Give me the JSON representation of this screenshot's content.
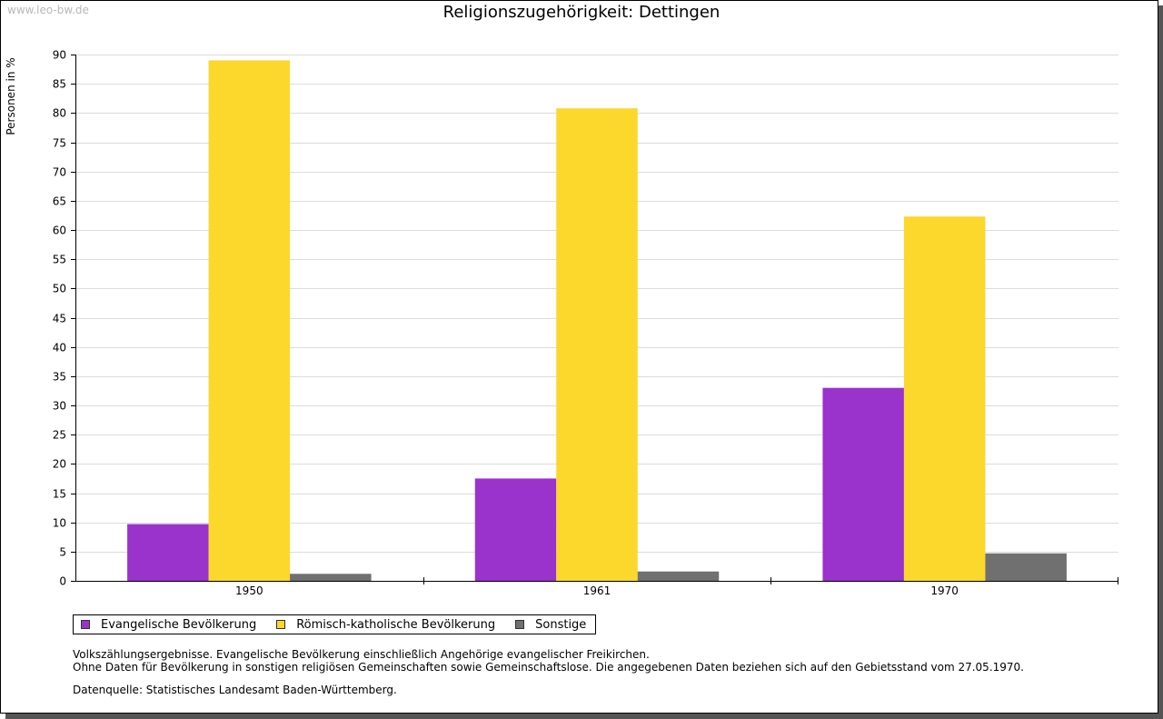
{
  "watermark": "www.leo-bw.de",
  "chart_data": {
    "type": "bar",
    "title": "Religionszugehörigkeit: Dettingen",
    "xlabel": "",
    "ylabel": "Personen in %",
    "ylim": [
      0,
      90
    ],
    "y_tick_step": 5,
    "grid": true,
    "legend_position": "bottom-left",
    "categories": [
      "1950",
      "1961",
      "1970"
    ],
    "series": [
      {
        "name": "Evangelische Bevölkerung",
        "color": "#9933cc",
        "values": [
          9.7,
          17.5,
          33.0
        ]
      },
      {
        "name": "Römisch-katholische Bevölkerung",
        "color": "#fcd72c",
        "values": [
          89.0,
          80.8,
          62.3
        ]
      },
      {
        "name": "Sonstige",
        "color": "#707070",
        "values": [
          1.2,
          1.6,
          4.7
        ]
      }
    ]
  },
  "notes": [
    "Volkszählungsergebnisse. Evangelische Bevölkerung einschließlich Angehörige evangelischer Freikirchen.",
    "Ohne Daten für Bevölkerung in sonstigen religiösen Gemeinschaften sowie Gemeinschaftslose. Die angegebenen Daten beziehen sich auf den Gebietsstand vom 27.05.1970."
  ],
  "source": "Datenquelle: Statistisches Landesamt Baden-Württemberg."
}
